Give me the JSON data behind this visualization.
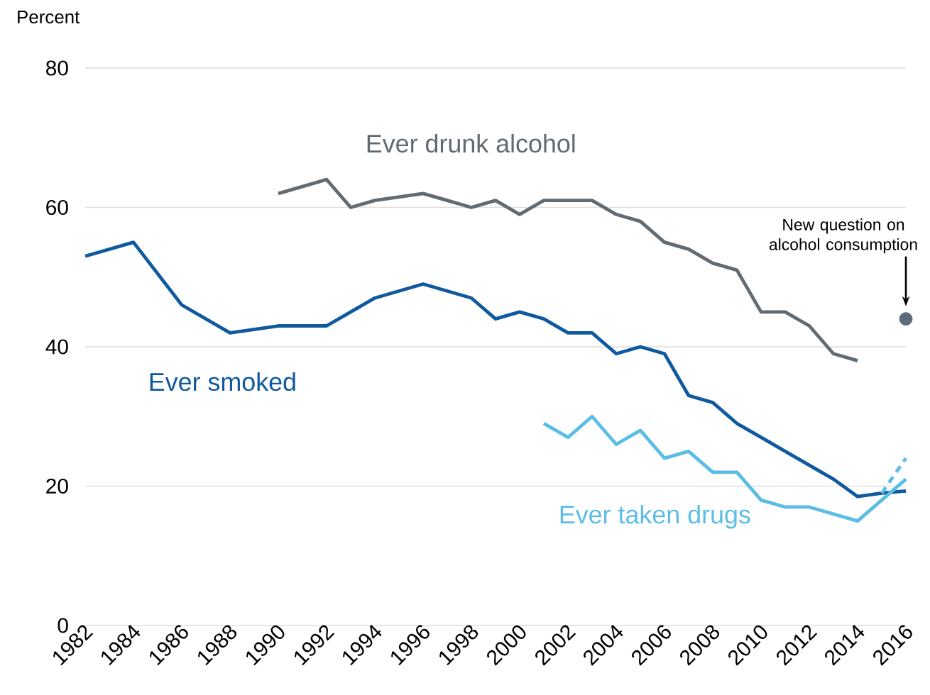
{
  "chart_data": {
    "type": "line",
    "ylabel": "Percent",
    "xlim": [
      1982,
      2016
    ],
    "ylim": [
      0,
      80
    ],
    "xticks": [
      1982,
      1984,
      1986,
      1988,
      1990,
      1992,
      1994,
      1996,
      1998,
      2000,
      2002,
      2004,
      2006,
      2008,
      2010,
      2012,
      2014,
      2016
    ],
    "yticks": [
      0,
      20,
      40,
      60,
      80
    ],
    "grid": "y",
    "series": [
      {
        "name": "Ever smoked",
        "color": "#0f5a9e",
        "x": [
          1982,
          1984,
          1986,
          1988,
          1990,
          1992,
          1994,
          1996,
          1998,
          1999,
          2000,
          2001,
          2002,
          2003,
          2004,
          2005,
          2006,
          2007,
          2008,
          2009,
          2010,
          2011,
          2012,
          2013,
          2014,
          2015,
          2016
        ],
        "values": [
          53,
          55,
          46,
          42,
          43,
          43,
          47,
          49,
          47,
          44,
          45,
          44,
          42,
          42,
          39,
          40,
          39,
          33,
          32,
          29,
          27,
          25,
          23,
          21,
          18.5,
          19,
          19.3
        ]
      },
      {
        "name": "Ever drunk alcohol",
        "color": "#626a72",
        "x": [
          1990,
          1992,
          1993,
          1994,
          1995,
          1996,
          1997,
          1998,
          1999,
          2000,
          2001,
          2002,
          2003,
          2004,
          2005,
          2006,
          2007,
          2008,
          2009,
          2010,
          2011,
          2012,
          2013,
          2014
        ],
        "values": [
          62,
          64,
          60,
          61,
          61.5,
          62,
          61,
          60,
          61,
          59,
          61,
          61,
          61,
          59,
          58,
          55,
          54,
          52,
          51,
          45,
          45,
          43,
          39,
          38
        ]
      },
      {
        "name": "Ever taken drugs",
        "color": "#5bbde6",
        "x": [
          2001,
          2002,
          2003,
          2004,
          2005,
          2006,
          2007,
          2008,
          2009,
          2010,
          2011,
          2012,
          2013,
          2014,
          2015,
          2016
        ],
        "values": [
          29,
          27,
          30,
          26,
          28,
          24,
          25,
          22,
          22,
          18,
          17,
          17,
          16,
          15,
          18,
          21
        ]
      },
      {
        "color": "#5bbde6",
        "line_style": "dashed",
        "x": [
          2015,
          2016
        ],
        "values": [
          19,
          24
        ]
      },
      {
        "type": "scatter",
        "marker": "circle",
        "color": "#5d6b78",
        "x": [
          2016
        ],
        "values": [
          44
        ]
      }
    ],
    "annotations": [
      "New question on alcohol consumption"
    ]
  }
}
